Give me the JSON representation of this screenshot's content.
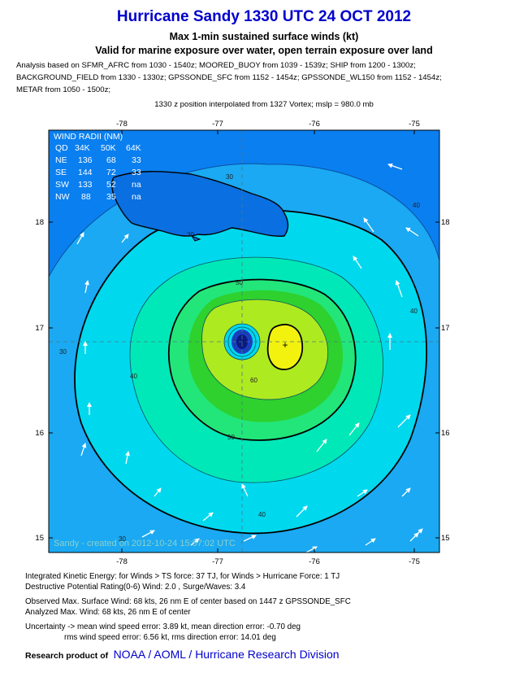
{
  "title": "Hurricane Sandy 1330 UTC 24 OCT 2012",
  "subtitle1": "Max 1-min sustained surface winds (kt)",
  "subtitle2": "Valid for marine exposure over water, open terrain exposure over land",
  "analysis_lines": [
    "Analysis based on SFMR_AFRC from 1030 - 1540z; MOORED_BUOY from 1039 - 1539z; SHIP from 1200 - 1300z;",
    "BACKGROUND_FIELD from 1330 - 1330z; GPSSONDE_SFC from 1152 - 1454z; GPSSONDE_WL150 from 1152 - 1454z;",
    "METAR from 1050 - 1500z;"
  ],
  "position_note": "1330 z position interpolated from 1327 Vortex; mslp = 980.0 mb",
  "map": {
    "lon_ticks": [
      "-78",
      "-77",
      "-76",
      "-75"
    ],
    "lat_ticks": [
      "18",
      "17",
      "16",
      "15"
    ],
    "right_lat_ticks": [
      "18",
      "17",
      "16",
      "15"
    ],
    "contour_labels": [
      "30",
      "30",
      "40",
      "40",
      "40",
      "40",
      "30",
      "50",
      "50",
      "60",
      "30"
    ],
    "wind_radii": {
      "header": "WIND RADII (NM)",
      "columns": [
        "QD",
        "34K",
        "50K",
        "64K"
      ],
      "rows": [
        [
          "NE",
          "136",
          "68",
          "33"
        ],
        [
          "SE",
          "144",
          "72",
          "33"
        ],
        [
          "SW",
          "133",
          "52",
          "na"
        ],
        [
          "NW",
          "88",
          "35",
          "na"
        ]
      ]
    },
    "created_note": "Sandy - created on 2012-10-24 15:57:02 UTC",
    "colors": {
      "outer": "#0a7ff0",
      "band30": "#1aa9f2",
      "band40": "#00d8ee",
      "band45": "#00e8b8",
      "band50": "#22e67a",
      "band55": "#2ed12e",
      "band60": "#aeea20",
      "band65": "#f2f20e"
    }
  },
  "stats_lines": [
    "Integrated Kinetic Energy: for Winds > TS force: 37 TJ, for Winds > Hurricane Force: 1 TJ",
    "Destructive Potential Rating(0-6)  Wind: 2.0 , Surge/Waves: 3.4",
    "Observed Max. Surface Wind: 68 kts, 26 nm E of center based on 1447 z GPSSONDE_SFC",
    "Analyzed Max. Wind: 68 kts, 26 nm  E of center",
    "Uncertainty -> mean wind speed error: 3.89 kt, mean direction error:  -0.70 deg",
    "rms wind speed error: 6.56 kt, rms direction error: 14.01 deg"
  ],
  "credit": {
    "lead": "Research product of",
    "org": "NOAA  /  AOML  /  Hurricane Research Division"
  }
}
